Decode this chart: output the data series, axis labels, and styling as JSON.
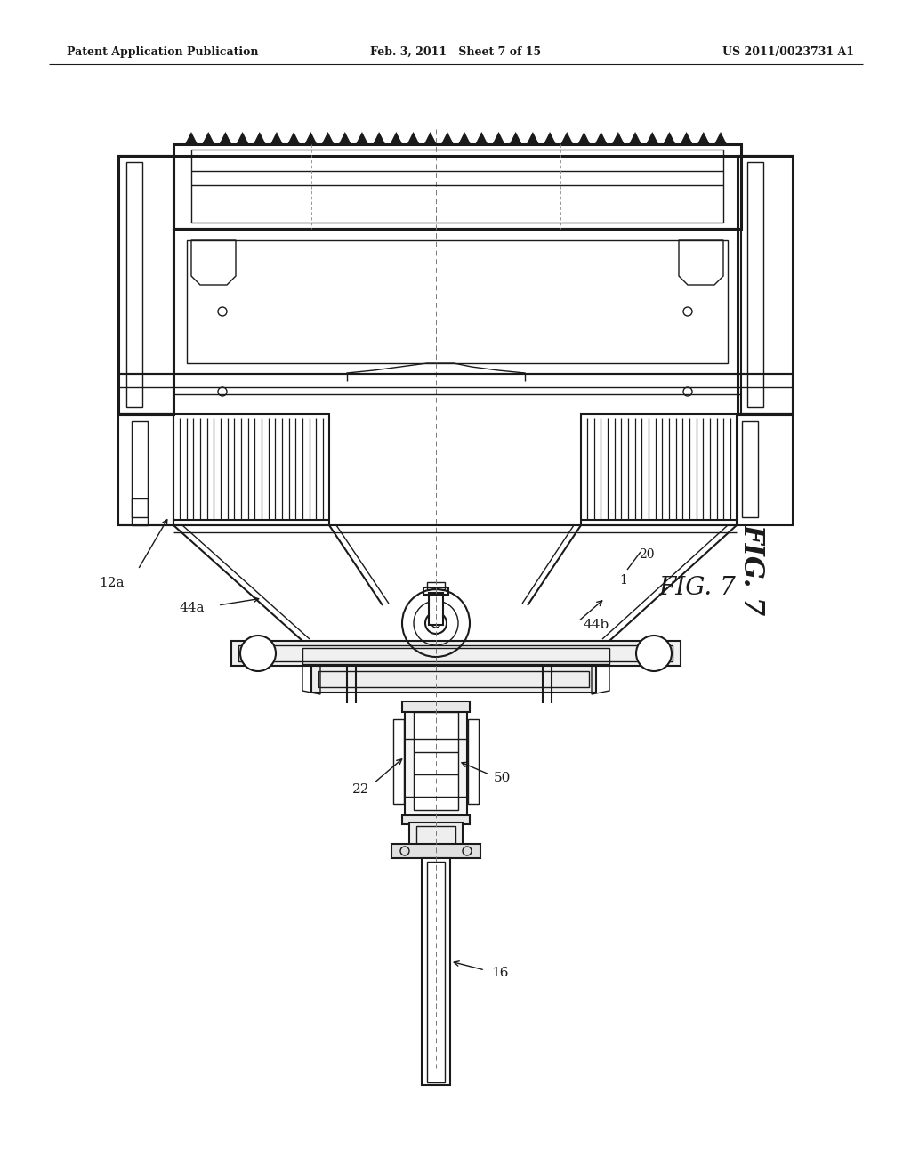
{
  "background_color": "#ffffff",
  "line_color": "#1a1a1a",
  "header_text_left": "Patent Application Publication",
  "header_text_middle": "Feb. 3, 2011   Sheet 7 of 15",
  "header_text_right": "US 2011/0023731 A1",
  "fig_label": "FIG. 7",
  "page_width": 10.24,
  "page_height": 13.2,
  "dpi": 100
}
